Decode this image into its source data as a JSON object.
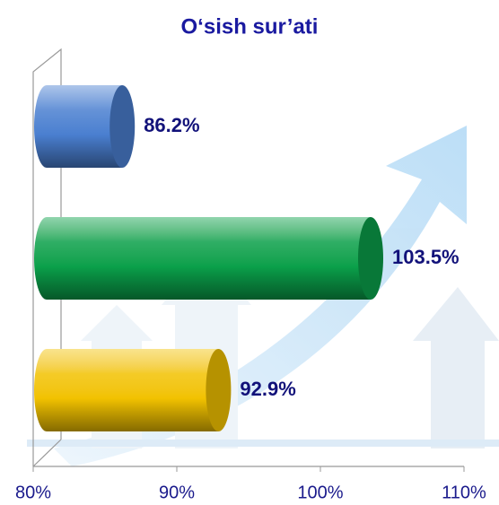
{
  "chart_data": {
    "type": "bar",
    "orientation": "horizontal",
    "title": "O‘sish sur’ati",
    "categories": [
      null,
      null,
      null
    ],
    "values": [
      86.2,
      103.5,
      92.9
    ],
    "value_labels": [
      "86.2%",
      "103.5%",
      "92.9%"
    ],
    "colors": [
      "#4a7fd0",
      "#0aa04a",
      "#f2c200"
    ],
    "xlim": [
      80,
      110
    ],
    "xticks": [
      {
        "value": 80,
        "label": "80%"
      },
      {
        "value": 90,
        "label": "90%"
      },
      {
        "value": 100,
        "label": "100%"
      },
      {
        "value": 110,
        "label": "110%"
      }
    ],
    "grid": false
  }
}
